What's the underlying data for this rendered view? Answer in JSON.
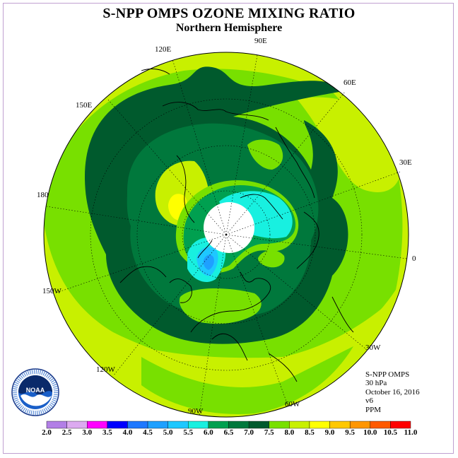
{
  "header": {
    "title": "S-NPP OMPS OZONE MIXING RATIO",
    "subtitle": "Northern Hemisphere"
  },
  "longitude_labels": [
    {
      "text": "90E",
      "key": "lon90e"
    },
    {
      "text": "60E",
      "key": "lon60e"
    },
    {
      "text": "120E",
      "key": "lon120e"
    },
    {
      "text": "150E",
      "key": "lon150e"
    },
    {
      "text": "30E",
      "key": "lon30e"
    },
    {
      "text": "180",
      "key": "lon180"
    },
    {
      "text": "0",
      "key": "lon0"
    },
    {
      "text": "150W",
      "key": "lon150w"
    },
    {
      "text": "30W",
      "key": "lon30w"
    },
    {
      "text": "120W",
      "key": "lon120w"
    },
    {
      "text": "60W",
      "key": "lon60w"
    },
    {
      "text": "90W",
      "key": "lon90w"
    }
  ],
  "info": {
    "product": "S-NPP OMPS",
    "level": "30 hPa",
    "date": "October 16, 2016",
    "version": "v6",
    "units": "PPM"
  },
  "logo": {
    "text": "NOAA",
    "ring_text": "NATIONAL OCEANIC AND ATMOSPHERIC ADMINISTRATION · U.S. DEPARTMENT OF COMMERCE"
  },
  "colorbar": {
    "ticks": [
      "2.0",
      "2.5",
      "3.0",
      "3.5",
      "4.0",
      "4.5",
      "5.0",
      "5.5",
      "6.0",
      "6.5",
      "7.0",
      "7.5",
      "8.0",
      "8.5",
      "9.0",
      "9.5",
      "10.0",
      "10.5",
      "11.0"
    ],
    "colors": [
      "#b27fe6",
      "#dcaaf0",
      "#ff00ff",
      "#0000ff",
      "#1e78ff",
      "#1ea0ff",
      "#1ec8ff",
      "#18f0e0",
      "#00a050",
      "#00783c",
      "#005a2d",
      "#78e000",
      "#c8f000",
      "#ffff00",
      "#ffc800",
      "#ff9600",
      "#ff5a00",
      "#ff0000",
      "#8b4513"
    ]
  },
  "colors": {
    "dark_green": "#005a2d",
    "mid_green": "#00783c",
    "green": "#00a050",
    "lime": "#78e000",
    "yellow_green": "#c8f000",
    "yellow": "#ffff00",
    "cyan": "#18f0e0",
    "light_blue": "#1ec8ff",
    "blue": "#1ea0ff"
  }
}
